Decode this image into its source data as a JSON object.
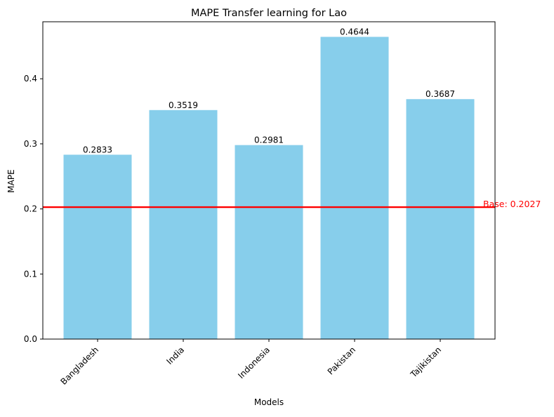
{
  "chart_data": {
    "type": "bar",
    "title": "MAPE Transfer learning for Lao",
    "xlabel": "Models",
    "ylabel": "MAPE",
    "categories": [
      "Bangladesh",
      "India",
      "Indonesia",
      "Pakistan",
      "Tajikistan"
    ],
    "values": [
      0.2833,
      0.3519,
      0.2981,
      0.4644,
      0.3687
    ],
    "value_labels": [
      "0.2833",
      "0.3519",
      "0.2981",
      "0.4644",
      "0.3687"
    ],
    "ylim": [
      0,
      0.4876
    ],
    "yticks": [
      0.0,
      0.1,
      0.2,
      0.3,
      0.4
    ],
    "ytick_labels": [
      "0.0",
      "0.1",
      "0.2",
      "0.3",
      "0.4"
    ],
    "grid": false,
    "bar_color": "#87ceeb",
    "baseline": {
      "value": 0.2027,
      "label": "Base: 0.2027",
      "color": "#ff0000"
    }
  }
}
